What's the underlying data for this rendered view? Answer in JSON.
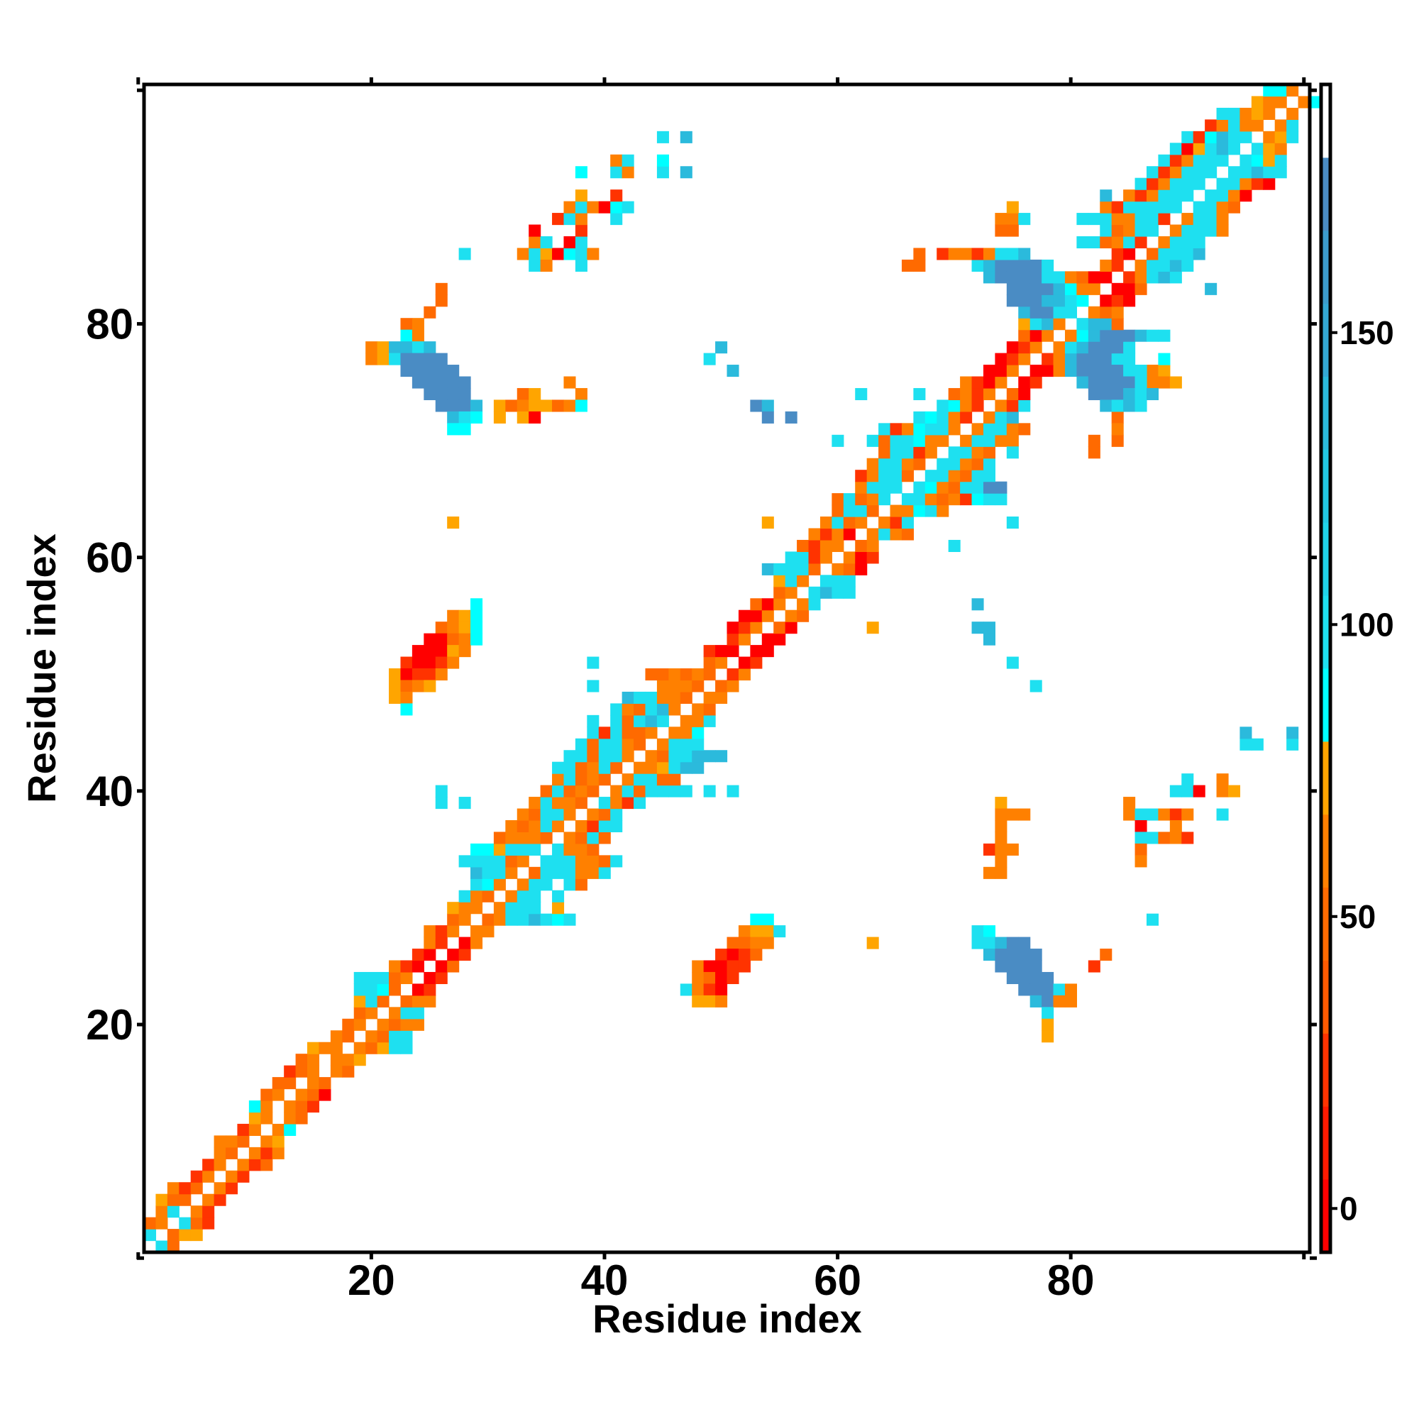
{
  "chart_data": {
    "type": "heatmap",
    "title": "",
    "xlabel": "Residue index",
    "ylabel": "Residue index",
    "xlim": [
      0.5,
      100.5
    ],
    "ylim": [
      0.5,
      100.5
    ],
    "grid": false,
    "xticks": [
      0,
      20,
      40,
      60,
      80,
      100
    ],
    "xticklabels": [
      "",
      "20",
      "40",
      "60",
      "80",
      ""
    ],
    "yticks": [
      0,
      20,
      40,
      60,
      80,
      100
    ],
    "yticklabels": [
      "",
      "20",
      "40",
      "60",
      "80",
      ""
    ],
    "colorbar": {
      "placement": "right",
      "range": [
        -7.5,
        192.5
      ],
      "ticks": [
        0,
        50,
        100,
        150
      ],
      "ticklabels": [
        "0",
        "50",
        "100",
        "150"
      ],
      "bins": [
        {
          "from": -7.5,
          "to": 5,
          "color": "#ff0000"
        },
        {
          "from": 5,
          "to": 17.5,
          "color": "#ff1a00"
        },
        {
          "from": 17.5,
          "to": 30,
          "color": "#ff3300"
        },
        {
          "from": 30,
          "to": 42.5,
          "color": "#ff5a00"
        },
        {
          "from": 42.5,
          "to": 55,
          "color": "#ff6a00"
        },
        {
          "from": 55,
          "to": 67.5,
          "color": "#ff8000"
        },
        {
          "from": 67.5,
          "to": 80,
          "color": "#ffa500"
        },
        {
          "from": 80,
          "to": 92.5,
          "color": "#00ffff"
        },
        {
          "from": 92.5,
          "to": 105,
          "color": "#1ee0f0"
        },
        {
          "from": 105,
          "to": 117.5,
          "color": "#20d4ea"
        },
        {
          "from": 117.5,
          "to": 130,
          "color": "#22c8e4"
        },
        {
          "from": 130,
          "to": 142.5,
          "color": "#2bbadc"
        },
        {
          "from": 142.5,
          "to": 155,
          "color": "#34a8d4"
        },
        {
          "from": 155,
          "to": 167.5,
          "color": "#3c9ccc"
        },
        {
          "from": 167.5,
          "to": 180,
          "color": "#4a8cc4"
        },
        {
          "from": 180,
          "to": 192.5,
          "color": "#ffffff"
        }
      ]
    },
    "cell_codes": {
      "R": 0,
      "r": 20,
      "o": 45,
      "O": 60,
      "a": 72,
      "c": 85,
      "C": 100,
      "b": 140,
      "B": 170
    },
    "rows": [
      [
        1,
        2,
        "Co"
      ],
      [
        2,
        1,
        "C.oaa"
      ],
      [
        3,
        1,
        "oO.Cor"
      ],
      [
        4,
        2,
        "OC.Or"
      ],
      [
        5,
        2,
        "aoo.Or"
      ],
      [
        6,
        3,
        "Oro.Or"
      ],
      [
        7,
        5,
        "rO.Or"
      ],
      [
        8,
        6,
        "rO.Oro"
      ],
      [
        9,
        7,
        "Oo.OrO"
      ],
      [
        10,
        7,
        "OOo.Oa"
      ],
      [
        11,
        9,
        "rO.Oc"
      ],
      [
        12,
        10,
        "aO.Oo"
      ],
      [
        13,
        10,
        "cO.Oor"
      ],
      [
        14,
        11,
        "oO.OoR"
      ],
      [
        15,
        12,
        "oo.Oo"
      ],
      [
        16,
        13,
        "roO.Oo"
      ],
      [
        17,
        14,
        "oO.OOa"
      ],
      [
        18,
        15,
        "aOO.OoaCC"
      ],
      [
        19,
        17,
        "Oo.OoCC"
      ],
      [
        20,
        18,
        "oO.OoOO"
      ],
      [
        21,
        19,
        "oO.OCC"
      ],
      [
        22,
        19,
        "aCo.oOO"
      ],
      [
        23,
        19,
        "CCco.Rr"
      ],
      [
        24,
        19,
        "CCCoO.Rr"
      ],
      [
        25,
        22,
        "OrR.Ro"
      ],
      [
        26,
        24,
        "rR.Rr"
      ],
      [
        27,
        25,
        "Or.RO"
      ],
      [
        28,
        25,
        "OrO.OO"
      ],
      [
        29,
        27,
        "oO.oOCCbCcC"
      ],
      [
        30,
        27,
        "aOO.OCCC.a"
      ],
      [
        31,
        28,
        "COo.OCC.C"
      ],
      [
        32,
        29,
        "CcO.OCC.Co"
      ],
      [
        33,
        29,
        "bCCO.oCCCOOC"
      ],
      [
        34,
        28,
        "CCCCoO.CCCOOoC"
      ],
      [
        35,
        29,
        "ccaCCC.COOo"
      ],
      [
        36,
        31,
        "oOOOo.OoCo"
      ],
      [
        37,
        32,
        "OoOCO.OrCC"
      ],
      [
        38,
        33,
        "OoCCO.OoC"
      ],
      [
        39,
        26,
        "C.C"
      ],
      [
        39,
        34,
        "OCOOo.COrC"
      ],
      [
        40,
        26,
        "C"
      ],
      [
        40,
        35,
        "oCoOo.OCoCCCC.C.C"
      ],
      [
        41,
        36,
        "OCoOo.OCCoo"
      ],
      [
        42,
        36,
        "CCoOCo.OOaCbb"
      ],
      [
        43,
        37,
        "CCoCCO.OoCCbbb"
      ],
      [
        44,
        38,
        "CoCCOo.OCCC"
      ],
      [
        45,
        39,
        "CrCooO.OOc"
      ],
      [
        46,
        39,
        "C.CoCbC.OOC"
      ],
      [
        47,
        41,
        "COoCbO.Oo"
      ],
      [
        48,
        42,
        "bCCOOo.OO"
      ],
      [
        49,
        39,
        "C.....OOOo.oO"
      ],
      [
        50,
        44,
        "ooOoOo.rO"
      ],
      [
        51,
        39,
        "C.........oO.Rr"
      ],
      [
        52,
        49,
        "rRR.RR"
      ],
      [
        53,
        51,
        "rO.RR"
      ],
      [
        54,
        51,
        "RrO.oR"
      ],
      [
        55,
        52,
        "RRO.Oo"
      ],
      [
        56,
        53,
        "oRO.OC"
      ],
      [
        57,
        55,
        "oO.CbCC"
      ],
      [
        58,
        55,
        "aCO.CCC"
      ],
      [
        59,
        54,
        "bCCCo.OoR"
      ],
      [
        60,
        56,
        "CCrO.ORr"
      ],
      [
        61,
        57,
        "orOO.oO"
      ],
      [
        62,
        58,
        "OrOR.OCOo"
      ],
      [
        63,
        59,
        "OCoO.OrC"
      ],
      [
        64,
        60,
        "oCCo.OOcCO"
      ],
      [
        65,
        60,
        "oCoOC.CCOoOrcCC"
      ],
      [
        66,
        62,
        "OCCC.CcOoCCBB"
      ],
      [
        67,
        62,
        "rOCCo.CCOoCC"
      ],
      [
        68,
        63,
        "OCCOo.CCOoC"
      ],
      [
        69,
        64,
        "oCCrO.CCOo"
      ],
      [
        70,
        63,
        "CoCCcOO.OCCOO"
      ],
      [
        71,
        64,
        "CrOcCCO.OCCOo"
      ],
      [
        72,
        67,
        "CcCOr.OCb"
      ],
      [
        73,
        69,
        "CcOr.OrC"
      ],
      [
        74,
        70,
        "oOrO.oR"
      ],
      [
        75,
        71,
        "OrRO.Rr"
      ],
      [
        76,
        73,
        "RRO.RRO"
      ],
      [
        77,
        74,
        "RrO.rObBBBCC"
      ],
      [
        78,
        75,
        "RrO.OCbBBBC"
      ],
      [
        79,
        76,
        "oRO.OcbBBBbCC"
      ],
      [
        80,
        76,
        "aCbO.Cbbo"
      ],
      [
        81,
        76,
        "bBBCC.OoO"
      ],
      [
        82,
        75,
        "BBBbbCc.RrR"
      ],
      [
        83,
        75,
        "BBBBbcOO.RRo"
      ],
      [
        84,
        73,
        "bBBBBCCOoRR.rOCbC"
      ],
      [
        85,
        72,
        "CbBBBBC....Or.OCCbC"
      ],
      [
        86,
        69,
        "rOOrOCCb.......rR.oCCCb"
      ],
      [
        87,
        81,
        "CCoOCr.OCCC"
      ],
      [
        88,
        83,
        "CoOCC.OCCCO"
      ],
      [
        89,
        81,
        "CCCOOCCr.OCCO"
      ],
      [
        90,
        83,
        "OrCCCCC.CCOo"
      ],
      [
        91,
        85,
        "OrOCCC.CCOR"
      ],
      [
        91,
        83,
        "b"
      ],
      [
        92,
        86,
        "CrOCCC.CCOrR"
      ],
      [
        93,
        87,
        "CrOCCC.CCbCC"
      ],
      [
        94,
        88,
        "CrOCCC.CcaC"
      ],
      [
        95,
        89,
        "CRaCbC.CaO"
      ],
      [
        96,
        90,
        "CrcbCC.OaC"
      ],
      [
        97,
        92,
        "rOCOO.OC"
      ],
      [
        98,
        93,
        "CCOaO.O"
      ],
      [
        99,
        96,
        "aOO.Oc"
      ],
      [
        100,
        97,
        "ccO."
      ],
      [
        83,
        26,
        "o"
      ],
      [
        82,
        26,
        "o"
      ],
      [
        81,
        25,
        "o"
      ],
      [
        80,
        23,
        "oO"
      ],
      [
        79,
        23,
        "cO"
      ],
      [
        78,
        20,
        "OabbCb"
      ],
      [
        77,
        20,
        "OaCBBBB"
      ],
      [
        76,
        23,
        "BBBBB"
      ],
      [
        75,
        24,
        "BBBBB"
      ],
      [
        74,
        25,
        "BBBB"
      ],
      [
        73,
        26,
        "BBBb"
      ],
      [
        72,
        27,
        "bCc"
      ],
      [
        71,
        27,
        "cc"
      ],
      [
        74,
        33,
        "oa...O"
      ],
      [
        73,
        31,
        "aoOaaoOc"
      ],
      [
        72,
        31,
        "a.aR"
      ],
      [
        75,
        37,
        "O"
      ],
      [
        73,
        53,
        "Bb"
      ],
      [
        72,
        54,
        "B"
      ],
      [
        72,
        56,
        "B"
      ],
      [
        76,
        51,
        "b"
      ],
      [
        77,
        49,
        "C"
      ],
      [
        86,
        28,
        "C"
      ],
      [
        86,
        33,
        "OCaRcCO"
      ],
      [
        85,
        34,
        "CO..C"
      ],
      [
        87,
        34,
        "OC.RC"
      ],
      [
        88,
        34,
        "R...r"
      ],
      [
        89,
        36,
        "rCO..C"
      ],
      [
        90,
        37,
        "OCORcC"
      ],
      [
        91,
        38,
        "a..r"
      ],
      [
        93,
        38,
        "c..CO..C.b"
      ],
      [
        94,
        41,
        "OC..c"
      ],
      [
        96,
        45,
        "C.b"
      ],
      [
        55,
        27,
        "Oac"
      ],
      [
        54,
        26,
        "oOac"
      ],
      [
        53,
        25,
        "RRoOc"
      ],
      [
        52,
        24,
        "RRRaO"
      ],
      [
        51,
        23,
        "rRRrO"
      ],
      [
        50,
        22,
        "aRrrO"
      ],
      [
        49,
        22,
        "aoOa"
      ],
      [
        48,
        22,
        "aO"
      ],
      [
        47,
        23,
        "c"
      ],
      [
        56,
        29,
        "c"
      ],
      [
        29,
        53,
        "cc"
      ],
      [
        28,
        52,
        "OaaC"
      ],
      [
        27,
        51,
        "ooOO"
      ],
      [
        26,
        50,
        "rRro"
      ],
      [
        25,
        48,
        "ORRrr"
      ],
      [
        24,
        48,
        "OoRr"
      ],
      [
        23,
        47,
        "COrR"
      ],
      [
        22,
        48,
        "aaO"
      ],
      [
        27,
        63,
        "a"
      ],
      [
        28,
        72,
        "Cc"
      ],
      [
        27,
        72,
        "CCbBB"
      ],
      [
        26,
        73,
        "bBBBB"
      ],
      [
        25,
        74,
        "BBBB"
      ],
      [
        24,
        75,
        "BBBB"
      ],
      [
        23,
        76,
        "BBBCO"
      ],
      [
        22,
        77,
        "bBOO"
      ],
      [
        21,
        78,
        "C"
      ],
      [
        20,
        78,
        "a"
      ],
      [
        19,
        78,
        "a"
      ],
      [
        25,
        82,
        "r"
      ],
      [
        26,
        83,
        "o"
      ],
      [
        29,
        87,
        "C"
      ],
      [
        39,
        74,
        "a"
      ],
      [
        38,
        74,
        "OOO"
      ],
      [
        37,
        74,
        "O"
      ],
      [
        36,
        74,
        "O"
      ],
      [
        35,
        73,
        "rOO"
      ],
      [
        34,
        74,
        "O"
      ],
      [
        33,
        73,
        "OO"
      ],
      [
        39,
        85,
        "O"
      ],
      [
        38,
        85,
        "OCCOrO..C"
      ],
      [
        37,
        86,
        "R..O"
      ],
      [
        36,
        86,
        "CCoOr"
      ],
      [
        35,
        86,
        "o"
      ],
      [
        34,
        86,
        "O"
      ],
      [
        40,
        89,
        "CCR"
      ],
      [
        41,
        90,
        "C..O"
      ],
      [
        40,
        93,
        "Oa"
      ],
      [
        44,
        95,
        "CC..C"
      ],
      [
        45,
        95,
        "b...b"
      ],
      [
        56,
        72,
        "b"
      ],
      [
        54,
        72,
        "bb"
      ],
      [
        53,
        73,
        "b"
      ],
      [
        51,
        75,
        "C"
      ],
      [
        49,
        77,
        "C"
      ],
      [
        54,
        63,
        "a"
      ],
      [
        63,
        27,
        "a"
      ],
      [
        63,
        54,
        "a"
      ],
      [
        61,
        70,
        "C"
      ],
      [
        63,
        75,
        "C"
      ],
      [
        69,
        75,
        "C"
      ],
      [
        69,
        82,
        "o"
      ],
      [
        70,
        82,
        "o.o"
      ],
      [
        74,
        62,
        "C....C"
      ],
      [
        70,
        60,
        "C"
      ],
      [
        78,
        50,
        "b"
      ],
      [
        89,
        74,
        "OOC"
      ],
      [
        90,
        75,
        "a"
      ],
      [
        88,
        74,
        "oo"
      ],
      [
        85,
        66,
        "oo"
      ],
      [
        86,
        67,
        "o"
      ],
      [
        83,
        92,
        "b"
      ],
      [
        76,
        87,
        "Oa"
      ],
      [
        75,
        87,
        "OOa"
      ],
      [
        77,
        88,
        "c"
      ],
      [
        72,
        84,
        "o"
      ],
      [
        71,
        84,
        "O"
      ],
      [
        76,
        80,
        "bBBBBCC"
      ],
      [
        75,
        81,
        "bBBBBC"
      ],
      [
        74,
        82,
        "BBBbCb"
      ],
      [
        73,
        83,
        "bCbC"
      ]
    ]
  }
}
